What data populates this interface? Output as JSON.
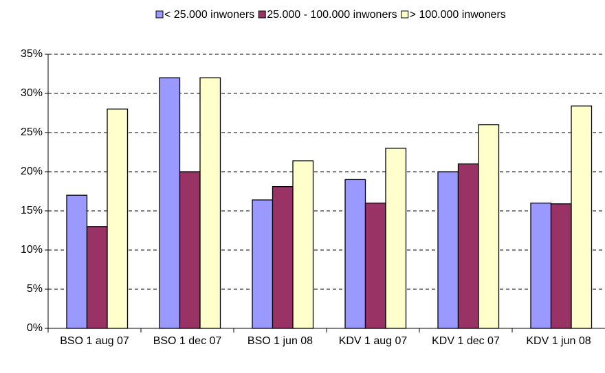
{
  "chart_data": {
    "type": "bar",
    "categories": [
      "BSO 1 aug 07",
      "BSO 1 dec 07",
      "BSO 1 jun 08",
      "KDV 1 aug 07",
      "KDV 1 dec 07",
      "KDV 1 jun 08"
    ],
    "series": [
      {
        "name": "< 25.000 inwoners",
        "color": "#9999ff",
        "values": [
          17,
          32,
          16.4,
          19,
          20,
          16
        ]
      },
      {
        "name": "25.000 - 100.000 inwoners",
        "color": "#993366",
        "values": [
          13,
          20,
          18.1,
          16,
          21,
          15.9
        ]
      },
      {
        "name": "> 100.000 inwoners",
        "color": "#ffffcc",
        "values": [
          28,
          32,
          21.4,
          23,
          26,
          28.4
        ]
      }
    ],
    "ylim": [
      0,
      35
    ],
    "yticks": [
      {
        "value": 0,
        "label": "0%"
      },
      {
        "value": 5,
        "label": "5%"
      },
      {
        "value": 10,
        "label": "10%"
      },
      {
        "value": 15,
        "label": "15%"
      },
      {
        "value": 20,
        "label": "20%"
      },
      {
        "value": 25,
        "label": "25%"
      },
      {
        "value": 30,
        "label": "30%"
      },
      {
        "value": 35,
        "label": "35%"
      }
    ],
    "grid": true,
    "legend": "top"
  }
}
